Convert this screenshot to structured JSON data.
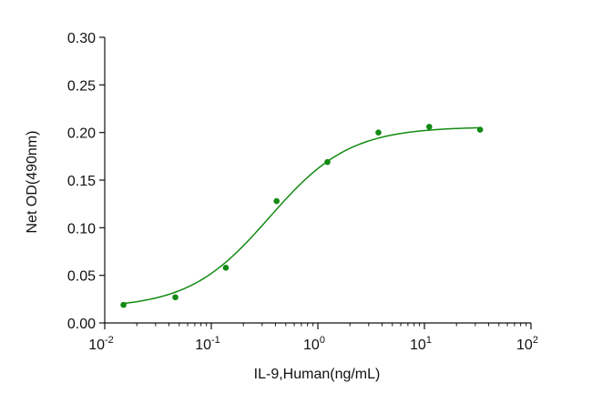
{
  "chart_data": {
    "type": "scatter",
    "title": "",
    "xlabel": "IL-9,Human(ng/mL)",
    "ylabel": "Net OD(490nm)",
    "xscale": "log",
    "xlim": [
      0.01,
      100
    ],
    "ylim": [
      0,
      0.3
    ],
    "x_ticks": [
      {
        "value": 0.01,
        "base": "10",
        "exp": "-2"
      },
      {
        "value": 0.1,
        "base": "10",
        "exp": "-1"
      },
      {
        "value": 1,
        "base": "10",
        "exp": "0"
      },
      {
        "value": 10,
        "base": "10",
        "exp": "1"
      },
      {
        "value": 100,
        "base": "10",
        "exp": "2"
      }
    ],
    "y_ticks": [
      {
        "value": 0.0,
        "label": "0.00"
      },
      {
        "value": 0.05,
        "label": "0.05"
      },
      {
        "value": 0.1,
        "label": "0.10"
      },
      {
        "value": 0.15,
        "label": "0.15"
      },
      {
        "value": 0.2,
        "label": "0.20"
      },
      {
        "value": 0.25,
        "label": "0.25"
      },
      {
        "value": 0.3,
        "label": "0.30"
      }
    ],
    "grid": false,
    "legend": "none",
    "color": "#138a13",
    "series": [
      {
        "x": [
          0.015,
          0.046,
          0.137,
          0.41,
          1.23,
          3.7,
          11.1,
          33.3
        ],
        "y": [
          0.019,
          0.027,
          0.058,
          0.128,
          0.169,
          0.2,
          0.206,
          0.203
        ]
      }
    ],
    "fit": {
      "model": "4PL",
      "bottom": 0.0155,
      "top": 0.206,
      "ec50": 0.35,
      "hill": 1.15
    }
  }
}
